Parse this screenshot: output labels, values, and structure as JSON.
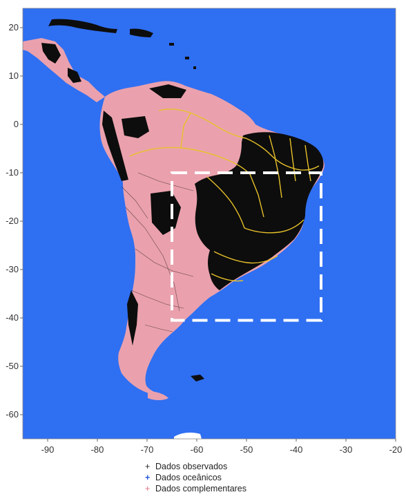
{
  "map": {
    "axes": {
      "x_ticks": [
        "-90",
        "-80",
        "-70",
        "-60",
        "-50",
        "-40",
        "-30",
        "-20"
      ],
      "y_ticks": [
        "20",
        "10",
        "0",
        "-10",
        "-20",
        "-30",
        "-40",
        "-50",
        "-60"
      ],
      "x_range": [
        -95,
        -20
      ],
      "y_range": [
        -65,
        24
      ]
    },
    "colors": {
      "ocean": "#2f6ff2",
      "land_complementary": "#eaa1ad",
      "land_observed": "#0d0d0d",
      "state_borders": "#e8c22a",
      "study_area_box": "#ffffff"
    },
    "study_area": {
      "lon_range": [
        -65,
        -35
      ],
      "lat_range": [
        -40.5,
        -10
      ]
    },
    "legend": {
      "items": [
        {
          "symbol": "+",
          "label": "Dados observados",
          "color": "#222222"
        },
        {
          "symbol": "+",
          "label": "Dados oceânicos",
          "color": "#2255dd"
        },
        {
          "symbol": "+",
          "label": "Dados complementares",
          "color": "#e0707f"
        }
      ]
    }
  }
}
